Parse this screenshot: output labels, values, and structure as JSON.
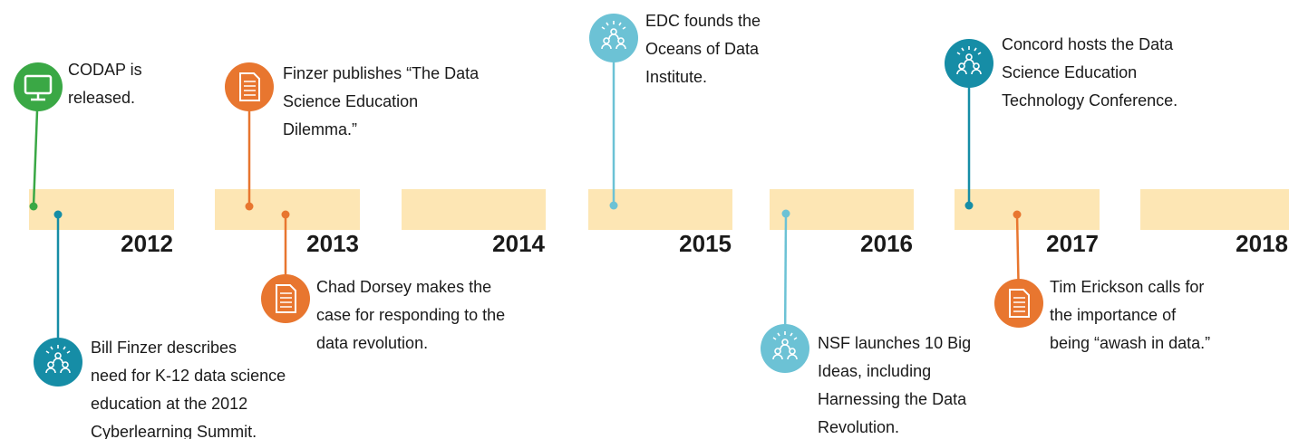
{
  "years": [
    "2012",
    "2013",
    "2014",
    "2015",
    "2016",
    "2017",
    "2018"
  ],
  "events": [
    {
      "lines": [
        "CODAP is",
        "released."
      ]
    },
    {
      "lines": [
        "Bill Finzer describes",
        "need for K-12 data science",
        "education at the 2012",
        "Cyberlearning Summit."
      ]
    },
    {
      "lines": [
        "Finzer publishes “The Data",
        "Science Education",
        "Dilemma.”"
      ]
    },
    {
      "lines": [
        "Chad Dorsey makes the",
        "case for responding to the",
        "data revolution."
      ]
    },
    {
      "lines": [
        "EDC founds the",
        "Oceans of Data",
        "Institute."
      ]
    },
    {
      "lines": [
        "NSF launches 10 Big",
        "Ideas, including",
        "Harnessing the Data",
        "Revolution."
      ]
    },
    {
      "lines": [
        "Concord hosts the Data",
        "Science Education",
        "Technology Conference."
      ]
    },
    {
      "lines": [
        "Tim Erickson calls for",
        "the importance of",
        "being “awash in data.”"
      ]
    }
  ]
}
